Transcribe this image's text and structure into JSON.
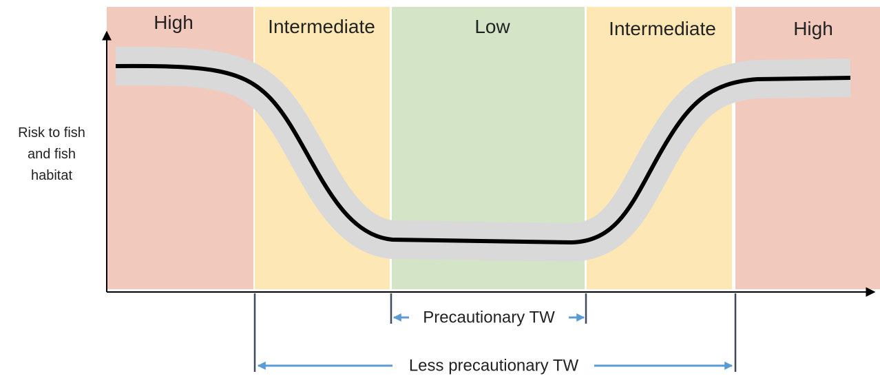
{
  "zones": [
    "High",
    "Intermediate",
    "Low",
    "Intermediate",
    "High"
  ],
  "y_axis_label": [
    "Risk to fish",
    "and fish",
    "habitat"
  ],
  "brackets": [
    "Precautionary TW",
    "Less precautionary TW"
  ]
}
